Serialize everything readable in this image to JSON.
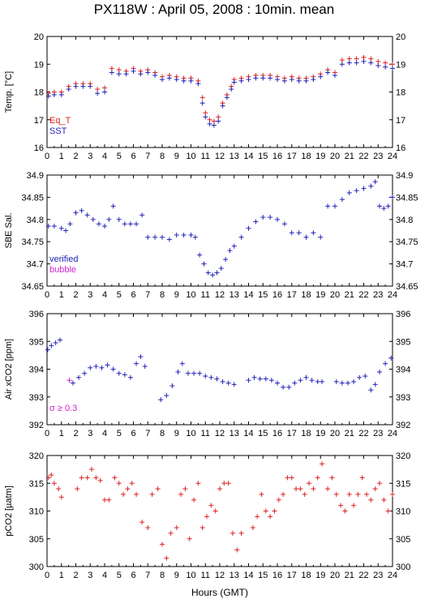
{
  "title": "PX118W : April 05, 2008 : 10min. mean",
  "xlabel": "Hours (GMT)",
  "x_ticks": [
    "0",
    "1",
    "2",
    "3",
    "4",
    "5",
    "6",
    "7",
    "8",
    "9",
    "10",
    "11",
    "12",
    "13",
    "14",
    "15",
    "16",
    "17",
    "18",
    "19",
    "20",
    "21",
    "22",
    "23",
    "24"
  ],
  "colors": {
    "red": "#dd2222",
    "blue": "#2222bb",
    "magenta": "#cc22cc"
  },
  "chart_data": [
    {
      "type": "scatter",
      "ylabel": "Temp. [°C]",
      "ylim": [
        16,
        20
      ],
      "y_ticks": [
        "16",
        "17",
        "18",
        "19",
        "20"
      ],
      "legend": [
        "Eq_T",
        "SST"
      ],
      "series": [
        {
          "name": "Eq_T",
          "color": "red",
          "x": [
            0.1,
            0.5,
            1,
            1.5,
            2,
            2.5,
            3,
            3.5,
            4,
            4.5,
            5,
            5.5,
            6,
            6.5,
            7,
            7.5,
            8,
            8.5,
            9,
            9.5,
            10,
            10.5,
            10.8,
            11,
            11.3,
            11.6,
            11.9,
            12.2,
            12.5,
            12.8,
            13,
            13.5,
            14,
            14.5,
            15,
            15.5,
            16,
            16.5,
            17,
            17.5,
            18,
            18.5,
            19,
            19.5,
            20,
            20.5,
            21,
            21.5,
            22,
            22.5,
            23,
            23.5,
            24
          ],
          "y": [
            17.95,
            18.0,
            18.0,
            18.2,
            18.3,
            18.3,
            18.3,
            18.1,
            18.15,
            18.85,
            18.8,
            18.75,
            18.85,
            18.75,
            18.8,
            18.7,
            18.55,
            18.6,
            18.55,
            18.5,
            18.5,
            18.4,
            17.8,
            17.25,
            17.0,
            16.95,
            17.1,
            17.6,
            17.9,
            18.2,
            18.45,
            18.5,
            18.55,
            18.6,
            18.6,
            18.6,
            18.55,
            18.5,
            18.55,
            18.5,
            18.5,
            18.55,
            18.65,
            18.8,
            18.7,
            19.15,
            19.2,
            19.2,
            19.25,
            19.2,
            19.1,
            19.05,
            19.0
          ]
        },
        {
          "name": "SST",
          "color": "blue",
          "x": [
            0.1,
            0.5,
            1,
            1.5,
            2,
            2.5,
            3,
            3.5,
            4,
            4.5,
            5,
            5.5,
            6,
            6.5,
            7,
            7.5,
            8,
            8.5,
            9,
            9.5,
            10,
            10.5,
            10.8,
            11,
            11.3,
            11.6,
            11.9,
            12.2,
            12.5,
            12.8,
            13,
            13.5,
            14,
            14.5,
            15,
            15.5,
            16,
            16.5,
            17,
            17.5,
            18,
            18.5,
            19,
            19.5,
            20,
            20.5,
            21,
            21.5,
            22,
            22.5,
            23,
            23.5,
            24
          ],
          "y": [
            17.85,
            17.9,
            17.9,
            18.1,
            18.2,
            18.2,
            18.2,
            17.95,
            18.0,
            18.7,
            18.65,
            18.65,
            18.75,
            18.65,
            18.7,
            18.6,
            18.45,
            18.5,
            18.45,
            18.4,
            18.4,
            18.3,
            17.6,
            17.1,
            16.85,
            16.8,
            16.95,
            17.5,
            17.8,
            18.1,
            18.35,
            18.4,
            18.45,
            18.5,
            18.5,
            18.5,
            18.45,
            18.4,
            18.45,
            18.4,
            18.4,
            18.45,
            18.55,
            18.7,
            18.6,
            19.0,
            19.05,
            19.05,
            19.1,
            19.05,
            18.95,
            18.9,
            18.85
          ]
        }
      ]
    },
    {
      "type": "scatter",
      "ylabel": "SBE Sal.",
      "ylim": [
        34.65,
        34.9
      ],
      "y_ticks": [
        "34.65",
        "34.7",
        "34.75",
        "34.8",
        "34.85",
        "34.9"
      ],
      "legend": [
        "verified",
        "bubble"
      ],
      "series": [
        {
          "name": "verified",
          "color": "blue",
          "x": [
            0.1,
            0.5,
            1,
            1.3,
            1.6,
            2,
            2.4,
            2.8,
            3.2,
            3.6,
            4,
            4.3,
            4.6,
            5,
            5.4,
            5.8,
            6.2,
            6.6,
            7,
            7.5,
            8,
            8.5,
            9,
            9.5,
            10,
            10.3,
            10.6,
            10.9,
            11.2,
            11.5,
            11.8,
            12.1,
            12.4,
            12.7,
            13,
            13.5,
            14,
            14.5,
            15,
            15.5,
            16,
            16.5,
            17,
            17.5,
            18,
            18.5,
            19,
            19.5,
            20,
            20.5,
            21,
            21.5,
            22,
            22.5,
            22.8,
            23.1,
            23.4,
            23.7,
            24
          ],
          "y": [
            34.785,
            34.785,
            34.78,
            34.775,
            34.79,
            34.815,
            34.82,
            34.81,
            34.8,
            34.79,
            34.785,
            34.8,
            34.83,
            34.8,
            34.79,
            34.79,
            34.79,
            34.81,
            34.76,
            34.76,
            34.76,
            34.755,
            34.765,
            34.765,
            34.765,
            34.76,
            34.72,
            34.7,
            34.68,
            34.675,
            34.68,
            34.69,
            34.71,
            34.73,
            34.74,
            34.76,
            34.78,
            34.795,
            34.805,
            34.805,
            34.8,
            34.79,
            34.77,
            34.77,
            34.76,
            34.77,
            34.76,
            34.83,
            34.83,
            34.845,
            34.86,
            34.865,
            34.87,
            34.875,
            34.885,
            34.83,
            34.825,
            34.83,
            34.85
          ]
        },
        {
          "name": "bubble",
          "color": "magenta",
          "x": [],
          "y": []
        }
      ]
    },
    {
      "type": "scatter",
      "ylabel": "Air xCO2 [ppm]",
      "ylim": [
        392,
        396
      ],
      "y_ticks": [
        "392",
        "393",
        "394",
        "395",
        "396"
      ],
      "annotation": "σ ≥ 0.3",
      "series": [
        {
          "name": "",
          "color": "blue",
          "x": [
            0.05,
            0.3,
            0.6,
            0.9,
            1.8,
            2.2,
            2.6,
            3,
            3.4,
            3.8,
            4.2,
            4.6,
            5,
            5.4,
            5.8,
            6.2,
            6.5,
            6.8,
            7.9,
            8.3,
            8.7,
            9.1,
            9.4,
            9.8,
            10.2,
            10.6,
            11,
            11.4,
            11.8,
            12.2,
            12.6,
            13,
            14,
            14.4,
            14.8,
            15.2,
            15.6,
            16,
            16.4,
            16.8,
            17.2,
            17.6,
            18,
            18.4,
            18.8,
            19.1,
            20.1,
            20.5,
            20.9,
            21.3,
            21.7,
            22.1,
            22.5,
            22.8,
            23.1,
            23.5,
            23.9
          ],
          "y": [
            394.7,
            394.85,
            394.95,
            395.05,
            393.5,
            393.7,
            393.85,
            394.05,
            394.1,
            394.05,
            394.15,
            394.0,
            393.85,
            393.8,
            393.7,
            394.2,
            394.45,
            394.1,
            392.9,
            393.05,
            393.4,
            393.9,
            394.2,
            393.85,
            393.85,
            393.85,
            393.75,
            393.7,
            393.65,
            393.55,
            393.5,
            393.45,
            393.6,
            393.7,
            393.65,
            393.65,
            393.6,
            393.5,
            393.35,
            393.35,
            393.5,
            393.6,
            393.7,
            393.6,
            393.55,
            393.55,
            393.55,
            393.5,
            393.5,
            393.55,
            393.7,
            393.75,
            393.25,
            393.45,
            393.9,
            394.2,
            394.4
          ]
        },
        {
          "name": "",
          "color": "magenta",
          "x": [
            1.55
          ],
          "y": [
            393.6
          ]
        }
      ]
    },
    {
      "type": "scatter",
      "ylabel": "pCO2 [µatm]",
      "ylim": [
        300,
        320
      ],
      "y_ticks": [
        "300",
        "305",
        "310",
        "315",
        "320"
      ],
      "series": [
        {
          "name": "",
          "color": "red",
          "x": [
            0.1,
            0.3,
            0.5,
            0.8,
            1,
            2.1,
            2.4,
            2.8,
            3.1,
            3.4,
            3.7,
            4,
            4.3,
            4.7,
            5,
            5.3,
            5.6,
            5.9,
            6.2,
            6.6,
            7,
            7.3,
            7.7,
            8,
            8.3,
            8.6,
            9,
            9.3,
            9.6,
            9.9,
            10.2,
            10.5,
            10.8,
            11.1,
            11.4,
            11.7,
            12,
            12.3,
            12.6,
            12.9,
            13.2,
            13.5,
            14.3,
            14.6,
            14.9,
            15.2,
            15.5,
            15.8,
            16.1,
            16.4,
            16.7,
            17,
            17.3,
            17.6,
            17.9,
            18.2,
            18.5,
            18.8,
            19.1,
            19.5,
            19.8,
            20.1,
            20.4,
            20.7,
            21,
            21.3,
            21.6,
            21.9,
            22.2,
            22.5,
            22.8,
            23.1,
            23.4,
            23.7,
            24
          ],
          "y": [
            316,
            316.5,
            315,
            314,
            312.5,
            314,
            316,
            316,
            317.5,
            316,
            315.5,
            312,
            312,
            316,
            315,
            313,
            314,
            315,
            313,
            308,
            307,
            313,
            314,
            304,
            301.5,
            306,
            307,
            313,
            314,
            305,
            312,
            315,
            307,
            309,
            311,
            310,
            314,
            315,
            315,
            306,
            303,
            306,
            307,
            309,
            313,
            310,
            309,
            310,
            312,
            313,
            316,
            316,
            314,
            314,
            313,
            315,
            314,
            316,
            318.5,
            314,
            316,
            313,
            311,
            310,
            313,
            311,
            313,
            316,
            313,
            312,
            314,
            315,
            312,
            310,
            313
          ]
        }
      ]
    }
  ]
}
